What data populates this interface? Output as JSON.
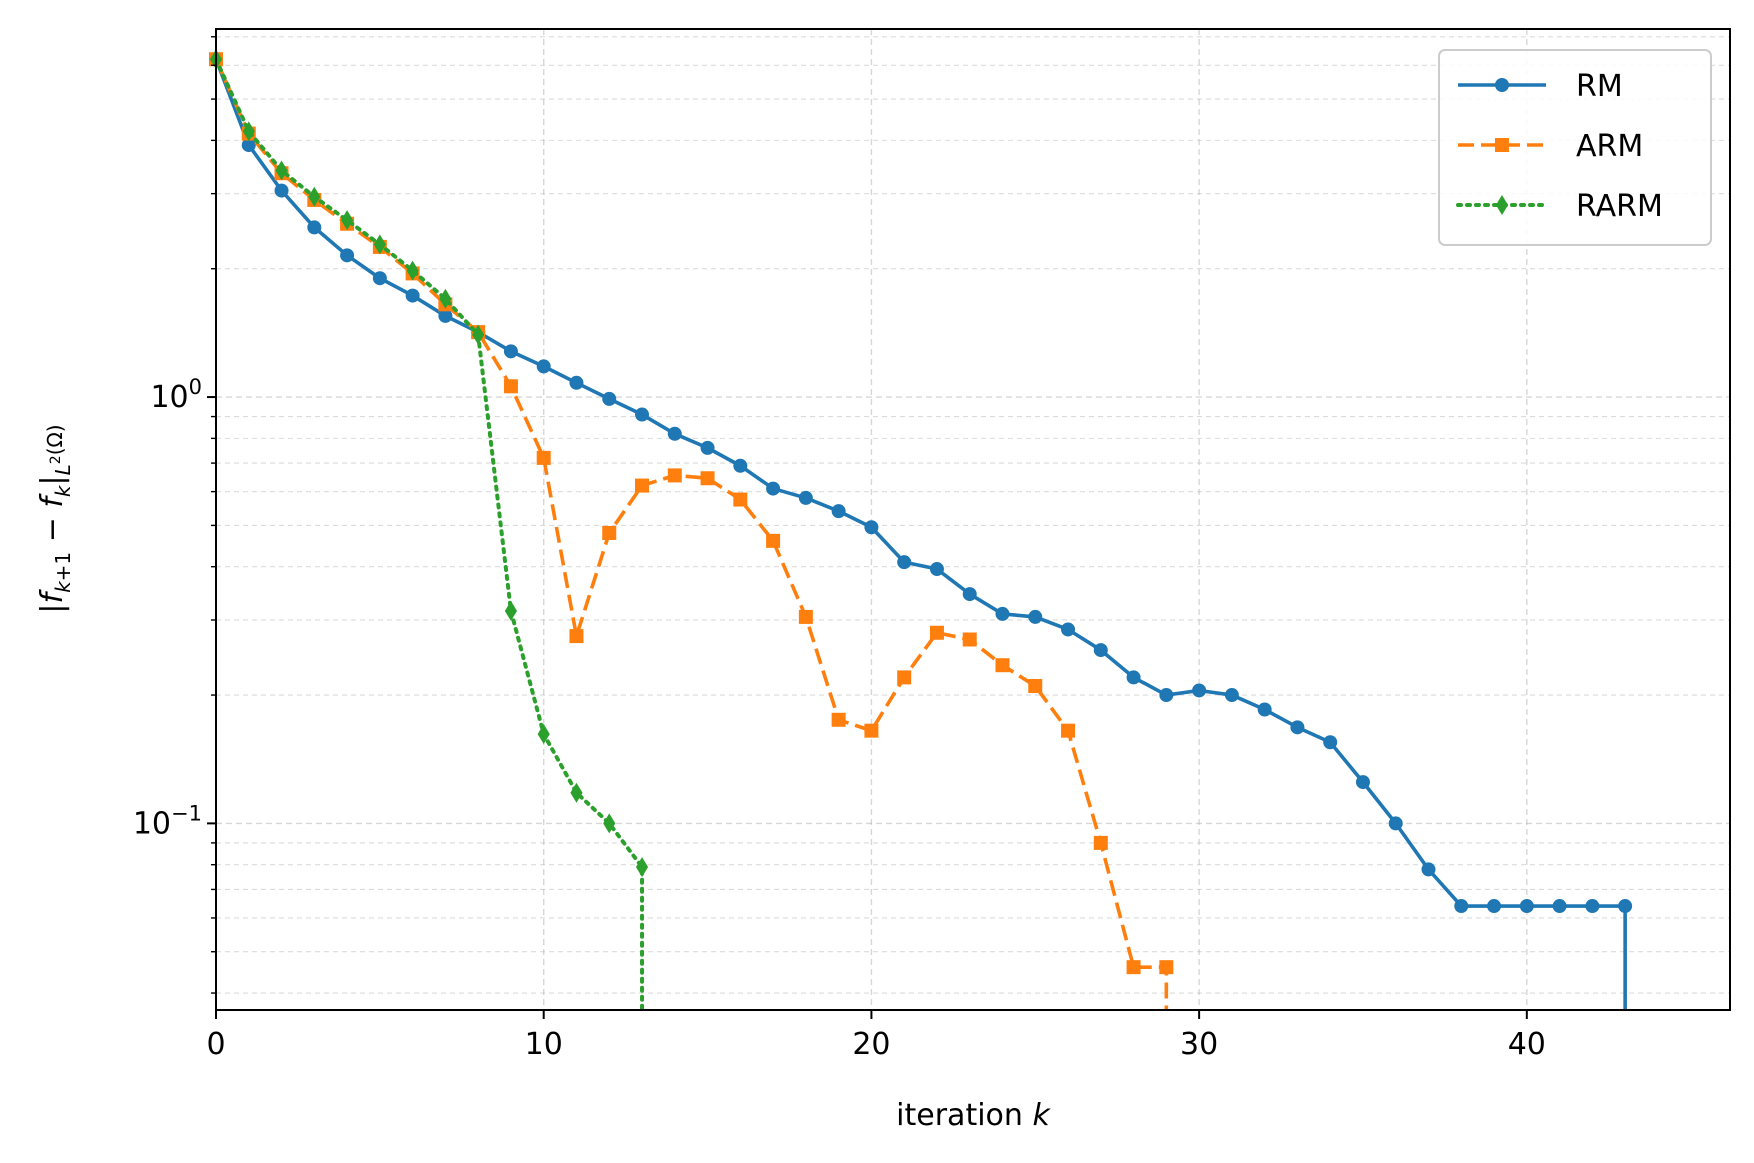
{
  "chart_data": {
    "type": "line",
    "title": "",
    "xlabel": "iteration k",
    "ylabel": "|f_{k+1} − f_k|_{L²(Ω)}",
    "xlim": [
      0,
      46.2
    ],
    "ylim": [
      0.0365,
      7.3
    ],
    "yscale": "log",
    "grid": true,
    "legend_position": "upper right",
    "x_ticks": [
      0,
      10,
      20,
      30,
      40
    ],
    "y_ticks": [
      {
        "value": 1.0,
        "base": "10",
        "exponent": "0"
      },
      {
        "value": 0.1,
        "base": "10",
        "exponent": "−1"
      }
    ],
    "series": [
      {
        "name": "RM",
        "color": "#1f77b4",
        "linestyle": "solid",
        "marker": "circle",
        "x": [
          0,
          1,
          2,
          3,
          4,
          5,
          6,
          7,
          8,
          9,
          10,
          11,
          12,
          13,
          14,
          15,
          16,
          17,
          18,
          19,
          20,
          21,
          22,
          23,
          24,
          25,
          26,
          27,
          28,
          29,
          30,
          31,
          32,
          33,
          34,
          35,
          36,
          37,
          38,
          39,
          40,
          41,
          42,
          43
        ],
        "y": [
          6.2,
          3.9,
          3.05,
          2.5,
          2.15,
          1.9,
          1.73,
          1.55,
          1.42,
          1.28,
          1.18,
          1.08,
          0.99,
          0.91,
          0.82,
          0.76,
          0.69,
          0.61,
          0.58,
          0.54,
          0.495,
          0.41,
          0.395,
          0.345,
          0.31,
          0.305,
          0.285,
          0.255,
          0.22,
          0.2,
          0.205,
          0.2,
          0.185,
          0.168,
          0.155,
          0.125,
          0.1,
          0.078,
          0.064,
          0.064,
          0.064,
          0.064,
          0.064,
          0.064
        ],
        "tail_drop_to_axis": true
      },
      {
        "name": "ARM",
        "color": "#ff7f0e",
        "linestyle": "dashed",
        "marker": "square",
        "x": [
          0,
          1,
          2,
          3,
          4,
          5,
          6,
          7,
          8,
          9,
          10,
          11,
          12,
          13,
          14,
          15,
          16,
          17,
          18,
          19,
          20,
          21,
          22,
          23,
          24,
          25,
          26,
          27,
          28,
          29
        ],
        "y": [
          6.2,
          4.15,
          3.35,
          2.9,
          2.55,
          2.25,
          1.95,
          1.65,
          1.42,
          1.06,
          0.72,
          0.275,
          0.48,
          0.62,
          0.655,
          0.645,
          0.575,
          0.46,
          0.305,
          0.175,
          0.165,
          0.22,
          0.28,
          0.27,
          0.235,
          0.21,
          0.165,
          0.09,
          0.046,
          0.046
        ],
        "tail_drop_to_axis": true
      },
      {
        "name": "RARM",
        "color": "#2ca02c",
        "linestyle": "dotted",
        "marker": "thin_diamond",
        "x": [
          0,
          1,
          2,
          3,
          4,
          5,
          6,
          7,
          8,
          9,
          10,
          11,
          12,
          13
        ],
        "y": [
          6.2,
          4.2,
          3.4,
          2.95,
          2.6,
          2.28,
          1.98,
          1.7,
          1.4,
          0.315,
          0.162,
          0.118,
          0.1,
          0.079
        ],
        "tail_drop_to_axis": true
      }
    ]
  }
}
